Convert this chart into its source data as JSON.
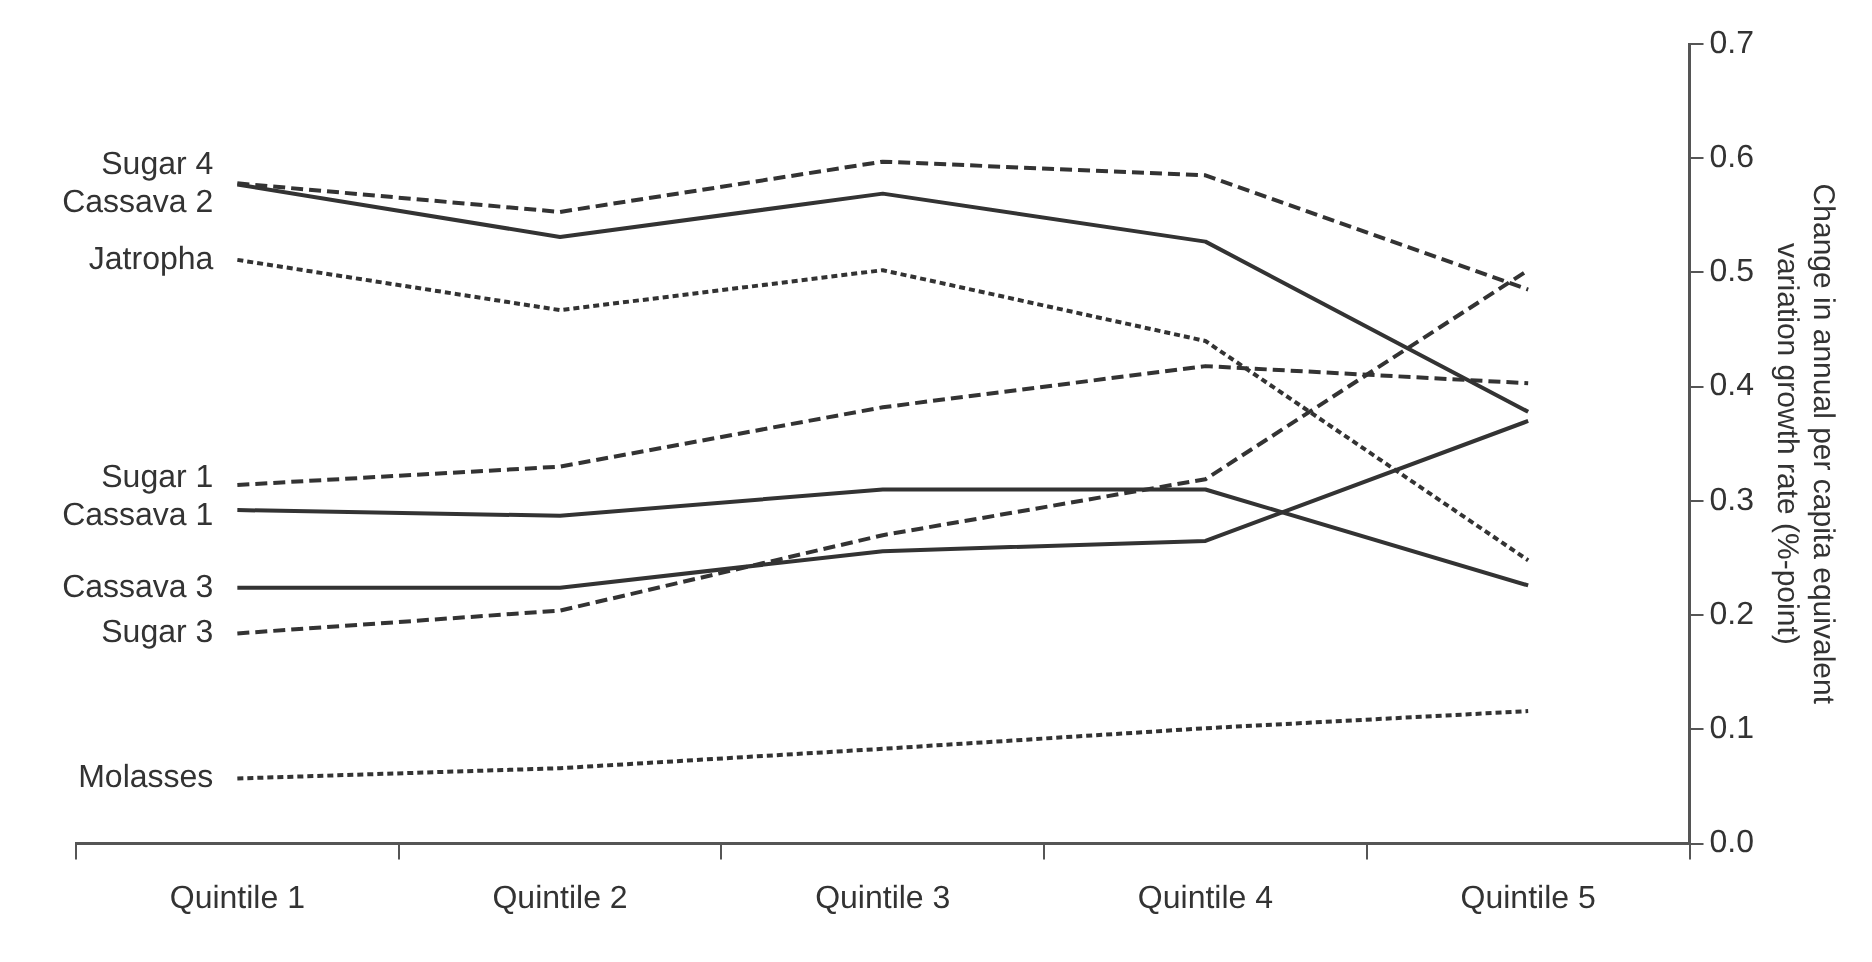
{
  "chart_data": {
    "type": "line",
    "ylabel": "Change in annual per capita equivalent variation growth rate (%-point)",
    "categories": [
      "Quintile 1",
      "Quintile 2",
      "Quintile 3",
      "Quintile 4",
      "Quintile 5"
    ],
    "series": [
      {
        "name": "Sugar 4",
        "color": "#333333",
        "line_style": "dashed",
        "values": [
          0.578,
          0.553,
          0.597,
          0.585,
          0.485
        ]
      },
      {
        "name": "Cassava 2",
        "color": "#333333",
        "line_style": "solid",
        "values": [
          0.577,
          0.531,
          0.569,
          0.527,
          0.378
        ]
      },
      {
        "name": "Jatropha",
        "color": "#333333",
        "line_style": "dotted",
        "values": [
          0.511,
          0.467,
          0.502,
          0.44,
          0.248
        ]
      },
      {
        "name": "Sugar 1",
        "color": "#333333",
        "line_style": "dashed",
        "values": [
          0.314,
          0.33,
          0.382,
          0.418,
          0.403
        ]
      },
      {
        "name": "Cassava 1",
        "color": "#333333",
        "line_style": "solid",
        "values": [
          0.292,
          0.287,
          0.31,
          0.31,
          0.226
        ]
      },
      {
        "name": "Cassava 3",
        "color": "#333333",
        "line_style": "solid",
        "values": [
          0.224,
          0.224,
          0.256,
          0.265,
          0.37
        ]
      },
      {
        "name": "Sugar 3",
        "color": "#333333",
        "line_style": "dashed",
        "values": [
          0.184,
          0.204,
          0.27,
          0.319,
          0.502
        ]
      },
      {
        "name": "Molasses",
        "color": "#333333",
        "line_style": "dotted",
        "values": [
          0.057,
          0.066,
          0.083,
          0.101,
          0.116
        ]
      }
    ],
    "ylim": [
      0,
      0.7
    ],
    "yticks": [
      {
        "value": 0,
        "label": "0.0"
      },
      0.1,
      0.2,
      0.3,
      0.4,
      0.5,
      0.6,
      0.7
    ],
    "grid": false,
    "legend": false,
    "marker": "none"
  }
}
